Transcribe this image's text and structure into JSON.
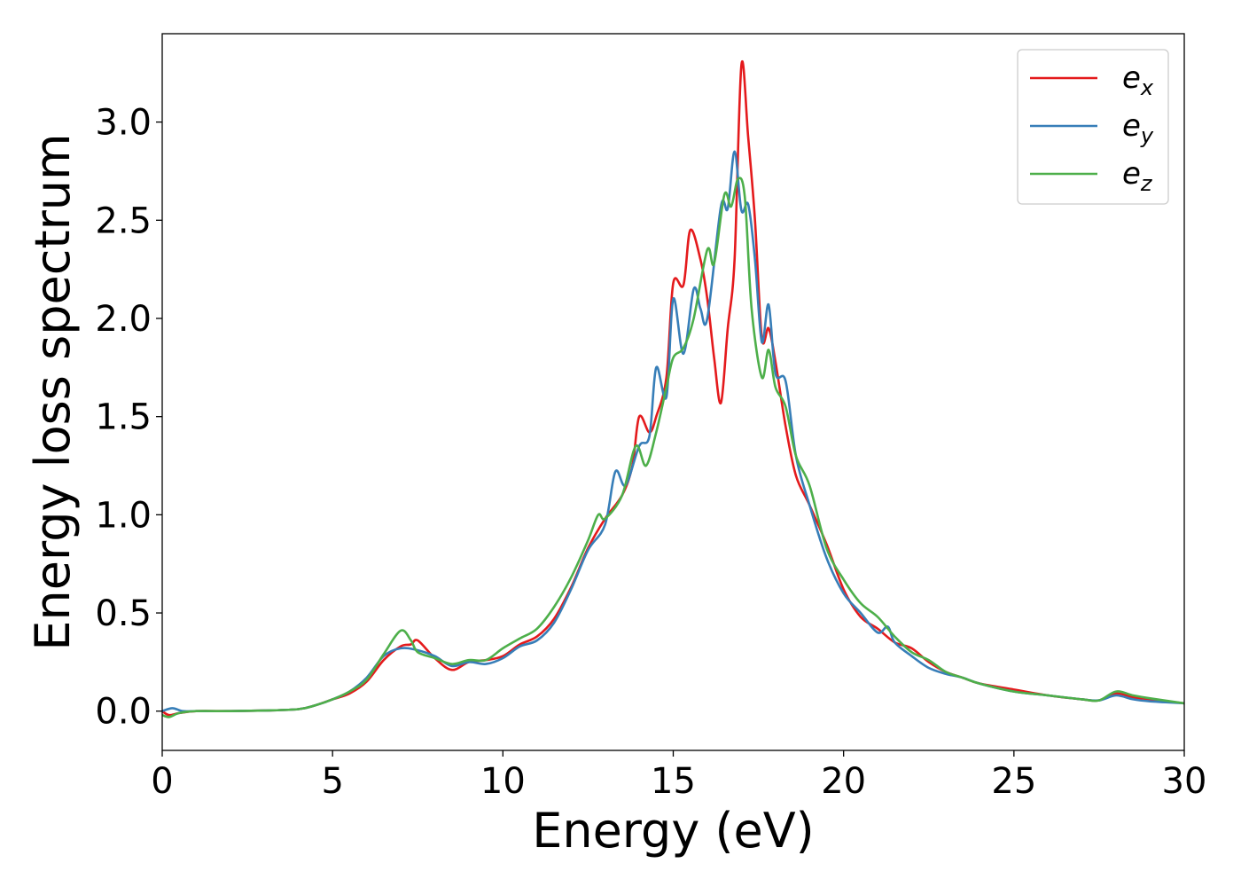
{
  "chart_data": {
    "type": "line",
    "title": "",
    "xlabel": "Energy (eV)",
    "ylabel": "Energy loss spectrum",
    "xlim": [
      0,
      30
    ],
    "ylim": [
      -0.2,
      3.45
    ],
    "xticks": [
      0,
      5,
      10,
      15,
      20,
      25,
      30
    ],
    "xtick_labels": [
      "0",
      "5",
      "10",
      "15",
      "20",
      "25",
      "30"
    ],
    "yticks": [
      0.0,
      0.5,
      1.0,
      1.5,
      2.0,
      2.5,
      3.0
    ],
    "ytick_labels": [
      "0.0",
      "0.5",
      "1.0",
      "1.5",
      "2.0",
      "2.5",
      "3.0"
    ],
    "grid": false,
    "legend_position": "top-right",
    "series": [
      {
        "name": "e_x",
        "label_base": "e",
        "label_sub": "x",
        "color": "#e41a1c",
        "points": [
          [
            0,
            0.0
          ],
          [
            0.2,
            -0.02
          ],
          [
            0.5,
            -0.01
          ],
          [
            1,
            0.0
          ],
          [
            2,
            0.0
          ],
          [
            3,
            0.003
          ],
          [
            4,
            0.01
          ],
          [
            4.5,
            0.03
          ],
          [
            5,
            0.06
          ],
          [
            5.5,
            0.09
          ],
          [
            6,
            0.15
          ],
          [
            6.5,
            0.26
          ],
          [
            7,
            0.33
          ],
          [
            7.3,
            0.34
          ],
          [
            7.5,
            0.36
          ],
          [
            8,
            0.27
          ],
          [
            8.5,
            0.21
          ],
          [
            9,
            0.25
          ],
          [
            9.5,
            0.26
          ],
          [
            10,
            0.28
          ],
          [
            10.5,
            0.34
          ],
          [
            11,
            0.38
          ],
          [
            11.5,
            0.47
          ],
          [
            12,
            0.63
          ],
          [
            12.5,
            0.83
          ],
          [
            13,
            0.98
          ],
          [
            13.5,
            1.1
          ],
          [
            13.8,
            1.25
          ],
          [
            14,
            1.5
          ],
          [
            14.3,
            1.42
          ],
          [
            14.5,
            1.5
          ],
          [
            14.8,
            1.7
          ],
          [
            15,
            2.18
          ],
          [
            15.3,
            2.17
          ],
          [
            15.5,
            2.45
          ],
          [
            15.8,
            2.3
          ],
          [
            16,
            2.1
          ],
          [
            16.2,
            1.8
          ],
          [
            16.4,
            1.57
          ],
          [
            16.6,
            1.95
          ],
          [
            16.8,
            2.3
          ],
          [
            17,
            3.29
          ],
          [
            17.2,
            2.92
          ],
          [
            17.4,
            2.5
          ],
          [
            17.6,
            1.9
          ],
          [
            17.8,
            1.95
          ],
          [
            18,
            1.78
          ],
          [
            18.3,
            1.45
          ],
          [
            18.6,
            1.2
          ],
          [
            19,
            1.05
          ],
          [
            19.5,
            0.85
          ],
          [
            20,
            0.62
          ],
          [
            20.5,
            0.48
          ],
          [
            21,
            0.42
          ],
          [
            21.5,
            0.35
          ],
          [
            22,
            0.32
          ],
          [
            22.5,
            0.25
          ],
          [
            23,
            0.2
          ],
          [
            23.5,
            0.17
          ],
          [
            24,
            0.14
          ],
          [
            25,
            0.11
          ],
          [
            26,
            0.08
          ],
          [
            27,
            0.06
          ],
          [
            27.5,
            0.055
          ],
          [
            28,
            0.09
          ],
          [
            28.5,
            0.07
          ],
          [
            29,
            0.06
          ],
          [
            30,
            0.04
          ]
        ]
      },
      {
        "name": "e_y",
        "label_base": "e",
        "label_sub": "y",
        "color": "#377eb8",
        "points": [
          [
            0,
            0.0
          ],
          [
            0.3,
            0.015
          ],
          [
            0.6,
            0.0
          ],
          [
            1,
            0.0
          ],
          [
            2,
            0.0
          ],
          [
            3,
            0.003
          ],
          [
            4,
            0.01
          ],
          [
            4.5,
            0.03
          ],
          [
            5,
            0.06
          ],
          [
            5.5,
            0.1
          ],
          [
            6,
            0.17
          ],
          [
            6.5,
            0.28
          ],
          [
            7,
            0.32
          ],
          [
            7.5,
            0.31
          ],
          [
            8,
            0.28
          ],
          [
            8.5,
            0.23
          ],
          [
            9,
            0.25
          ],
          [
            9.5,
            0.24
          ],
          [
            10,
            0.27
          ],
          [
            10.5,
            0.33
          ],
          [
            11,
            0.36
          ],
          [
            11.5,
            0.45
          ],
          [
            12,
            0.62
          ],
          [
            12.5,
            0.82
          ],
          [
            13,
            0.95
          ],
          [
            13.3,
            1.22
          ],
          [
            13.6,
            1.15
          ],
          [
            14,
            1.35
          ],
          [
            14.3,
            1.4
          ],
          [
            14.5,
            1.75
          ],
          [
            14.8,
            1.6
          ],
          [
            15,
            2.1
          ],
          [
            15.3,
            1.82
          ],
          [
            15.6,
            2.15
          ],
          [
            15.8,
            2.05
          ],
          [
            16,
            2.0
          ],
          [
            16.4,
            2.57
          ],
          [
            16.6,
            2.56
          ],
          [
            16.8,
            2.85
          ],
          [
            17,
            2.55
          ],
          [
            17.2,
            2.58
          ],
          [
            17.4,
            2.3
          ],
          [
            17.6,
            1.88
          ],
          [
            17.8,
            2.07
          ],
          [
            18,
            1.72
          ],
          [
            18.3,
            1.68
          ],
          [
            18.6,
            1.3
          ],
          [
            19,
            1.05
          ],
          [
            19.5,
            0.78
          ],
          [
            20,
            0.6
          ],
          [
            20.5,
            0.5
          ],
          [
            21,
            0.4
          ],
          [
            21.3,
            0.43
          ],
          [
            21.5,
            0.35
          ],
          [
            22,
            0.28
          ],
          [
            22.5,
            0.22
          ],
          [
            23,
            0.19
          ],
          [
            23.5,
            0.17
          ],
          [
            24,
            0.14
          ],
          [
            25,
            0.1
          ],
          [
            26,
            0.08
          ],
          [
            27,
            0.06
          ],
          [
            27.5,
            0.055
          ],
          [
            28,
            0.08
          ],
          [
            28.5,
            0.06
          ],
          [
            29,
            0.05
          ],
          [
            30,
            0.04
          ]
        ]
      },
      {
        "name": "e_z",
        "label_base": "e",
        "label_sub": "z",
        "color": "#4daf4a",
        "points": [
          [
            0,
            -0.02
          ],
          [
            0.2,
            -0.03
          ],
          [
            0.5,
            -0.01
          ],
          [
            1,
            0.0
          ],
          [
            2,
            0.0
          ],
          [
            3,
            0.003
          ],
          [
            4,
            0.01
          ],
          [
            4.5,
            0.03
          ],
          [
            5,
            0.06
          ],
          [
            5.5,
            0.1
          ],
          [
            6,
            0.16
          ],
          [
            6.5,
            0.29
          ],
          [
            7,
            0.41
          ],
          [
            7.3,
            0.36
          ],
          [
            7.5,
            0.3
          ],
          [
            8,
            0.27
          ],
          [
            8.5,
            0.24
          ],
          [
            9,
            0.26
          ],
          [
            9.5,
            0.26
          ],
          [
            10,
            0.32
          ],
          [
            10.5,
            0.37
          ],
          [
            11,
            0.42
          ],
          [
            11.5,
            0.53
          ],
          [
            12,
            0.68
          ],
          [
            12.5,
            0.87
          ],
          [
            12.8,
            1.0
          ],
          [
            13,
            0.98
          ],
          [
            13.5,
            1.1
          ],
          [
            13.9,
            1.35
          ],
          [
            14.2,
            1.25
          ],
          [
            14.5,
            1.42
          ],
          [
            14.8,
            1.65
          ],
          [
            15,
            1.8
          ],
          [
            15.3,
            1.85
          ],
          [
            15.6,
            2.0
          ],
          [
            16,
            2.35
          ],
          [
            16.2,
            2.28
          ],
          [
            16.5,
            2.63
          ],
          [
            16.7,
            2.57
          ],
          [
            16.9,
            2.71
          ],
          [
            17.1,
            2.62
          ],
          [
            17.3,
            2.05
          ],
          [
            17.6,
            1.7
          ],
          [
            17.8,
            1.84
          ],
          [
            18,
            1.65
          ],
          [
            18.3,
            1.55
          ],
          [
            18.6,
            1.3
          ],
          [
            19,
            1.15
          ],
          [
            19.5,
            0.83
          ],
          [
            20,
            0.67
          ],
          [
            20.5,
            0.55
          ],
          [
            21,
            0.48
          ],
          [
            21.5,
            0.38
          ],
          [
            22,
            0.3
          ],
          [
            22.5,
            0.26
          ],
          [
            23,
            0.2
          ],
          [
            23.5,
            0.17
          ],
          [
            24,
            0.14
          ],
          [
            25,
            0.1
          ],
          [
            26,
            0.08
          ],
          [
            27,
            0.06
          ],
          [
            27.5,
            0.055
          ],
          [
            28,
            0.1
          ],
          [
            28.5,
            0.08
          ],
          [
            29,
            0.065
          ],
          [
            30,
            0.04
          ]
        ]
      }
    ]
  }
}
